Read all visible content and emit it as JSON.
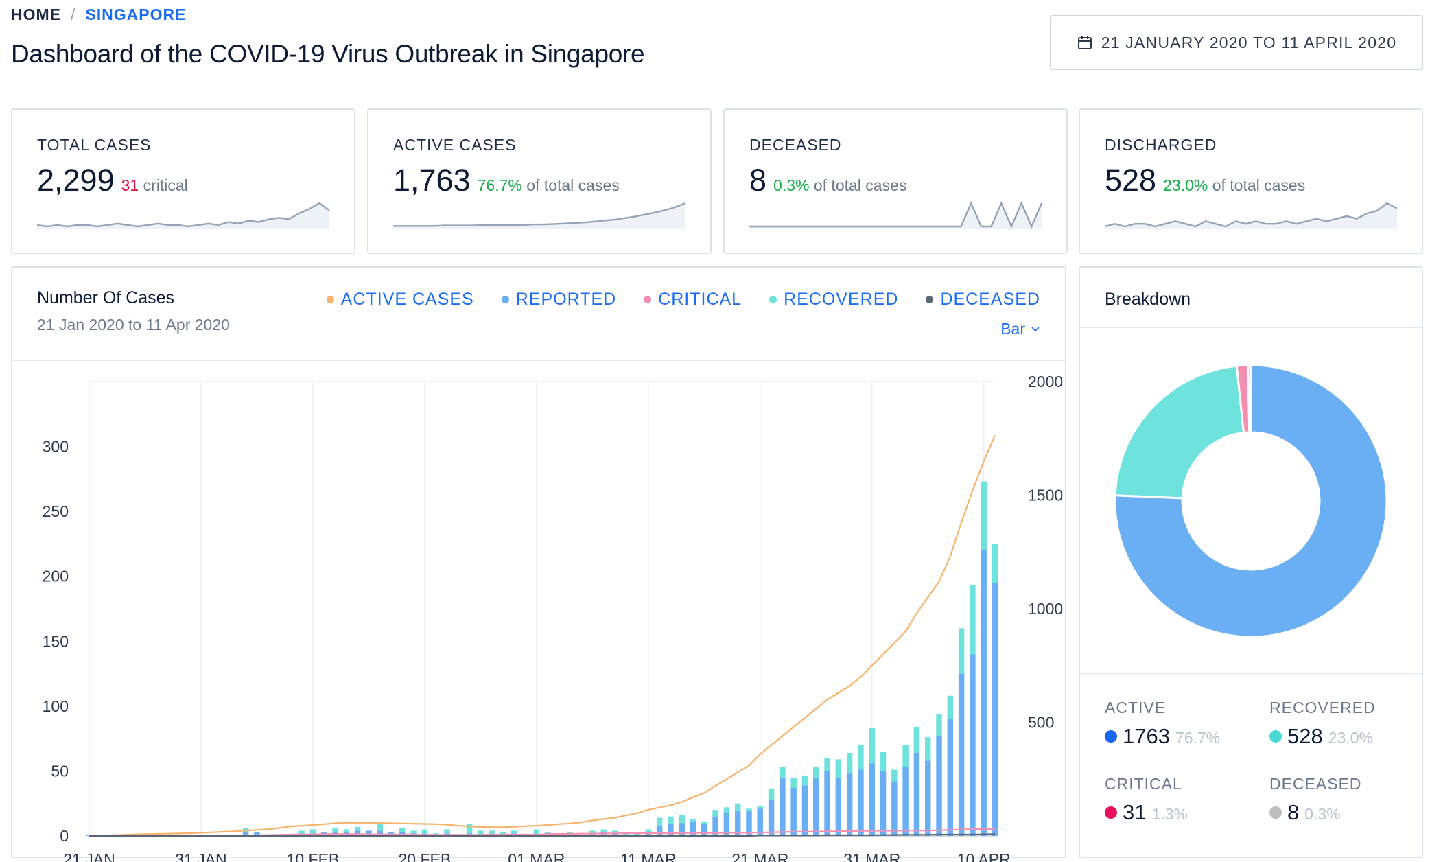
{
  "breadcrumb": {
    "home": "HOME",
    "separator": "/",
    "current": "SINGAPORE"
  },
  "page_title": "Dashboard of the COVID-19 Virus Outbreak in Singapore",
  "date_range": {
    "label": "21 JANUARY 2020 TO 11 APRIL 2020",
    "icon": "calendar-icon"
  },
  "stats": [
    {
      "label": "TOTAL CASES",
      "value": "2,299",
      "sub_value": "31",
      "sub_text": "critical",
      "sub_color": "red"
    },
    {
      "label": "ACTIVE CASES",
      "value": "1,763",
      "sub_value": "76.7%",
      "sub_text": "of total cases",
      "sub_color": "green"
    },
    {
      "label": "DECEASED",
      "value": "8",
      "sub_value": "0.3%",
      "sub_text": "of total cases",
      "sub_color": "green"
    },
    {
      "label": "DISCHARGED",
      "value": "528",
      "sub_value": "23.0%",
      "sub_text": "of total cases",
      "sub_color": "green"
    }
  ],
  "sparklines": [
    [
      1,
      0,
      1,
      0,
      1,
      1,
      0,
      1,
      2,
      1,
      0,
      1,
      2,
      1,
      1,
      0,
      1,
      2,
      1,
      3,
      2,
      4,
      3,
      5,
      6,
      5,
      9,
      12,
      16,
      11
    ],
    [
      1,
      1,
      1,
      1,
      1,
      2,
      2,
      2,
      2,
      3,
      3,
      3,
      3,
      3,
      4,
      4,
      5,
      6,
      7,
      8,
      10,
      12,
      14,
      17,
      20,
      24,
      28,
      33,
      39,
      47
    ],
    [
      0,
      0,
      0,
      0,
      0,
      0,
      0,
      0,
      0,
      0,
      0,
      0,
      0,
      0,
      0,
      0,
      0,
      0,
      0,
      0,
      0,
      0,
      1,
      0,
      0,
      1,
      0,
      1,
      0,
      1
    ],
    [
      0,
      1,
      0,
      1,
      1,
      0,
      1,
      2,
      1,
      0,
      2,
      1,
      0,
      2,
      1,
      2,
      1,
      1,
      2,
      1,
      2,
      3,
      2,
      3,
      4,
      3,
      5,
      6,
      9,
      7
    ]
  ],
  "chart": {
    "title": "Number Of Cases",
    "subtitle": "21 Jan 2020 to 11 Apr 2020",
    "type_selector": "Bar",
    "legend": [
      {
        "label": "ACTIVE CASES",
        "color": "#f5b36b"
      },
      {
        "label": "REPORTED",
        "color": "#6aaef4"
      },
      {
        "label": "CRITICAL",
        "color": "#f48fb1"
      },
      {
        "label": "RECOVERED",
        "color": "#6ee2dd"
      },
      {
        "label": "DECEASED",
        "color": "#5b6677"
      }
    ]
  },
  "breakdown": {
    "title": "Breakdown",
    "items": [
      {
        "label": "ACTIVE",
        "value": "1763",
        "pct": "76.7%",
        "color": "#1765f2"
      },
      {
        "label": "RECOVERED",
        "value": "528",
        "pct": "23.0%",
        "color": "#4bd9d4"
      },
      {
        "label": "CRITICAL",
        "value": "31",
        "pct": "1.3%",
        "color": "#e8125d"
      },
      {
        "label": "DECEASED",
        "value": "8",
        "pct": "0.3%",
        "color": "#bdbdbd"
      }
    ]
  },
  "chart_data": [
    {
      "type": "bar",
      "title": "Number Of Cases",
      "subtitle": "21 Jan 2020 to 11 Apr 2020",
      "x_tick_labels": [
        "21 JAN",
        "31 JAN",
        "10 FEB",
        "20 FEB",
        "01 MAR",
        "11 MAR",
        "21 MAR",
        "31 MAR",
        "10 APR"
      ],
      "y_left_ticks": [
        0,
        50,
        100,
        150,
        200,
        250,
        300
      ],
      "y_left_lim": [
        0,
        350
      ],
      "y_right_ticks": [
        500,
        1000,
        1500,
        2000
      ],
      "y_right_lim": [
        0,
        2000
      ],
      "stacked": true,
      "days": 82,
      "series": [
        {
          "name": "REPORTED",
          "axis": "left",
          "kind": "bar",
          "color": "#6aaef4",
          "values": [
            1,
            0,
            0,
            1,
            0,
            0,
            0,
            0,
            0,
            1,
            0,
            0,
            0,
            0,
            3,
            3,
            0,
            0,
            0,
            1,
            2,
            3,
            3,
            3,
            4,
            4,
            4,
            3,
            3,
            2,
            2,
            1,
            2,
            0,
            2,
            1,
            0,
            0,
            2,
            0,
            1,
            0,
            1,
            1,
            0,
            2,
            3,
            2,
            1,
            0,
            3,
            8,
            9,
            10,
            11,
            9,
            15,
            18,
            19,
            19,
            21,
            28,
            45,
            37,
            39,
            45,
            50,
            45,
            48,
            51,
            56,
            50,
            42,
            53,
            64,
            58,
            77,
            90,
            125,
            140,
            220,
            195
          ]
        },
        {
          "name": "RECOVERED",
          "axis": "left",
          "kind": "bar",
          "color": "#6ee2dd",
          "values": [
            0,
            0,
            0,
            0,
            0,
            0,
            0,
            0,
            0,
            0,
            0,
            0,
            0,
            0,
            3,
            0,
            0,
            0,
            0,
            3,
            3,
            0,
            3,
            2,
            3,
            0,
            5,
            0,
            3,
            2,
            3,
            1,
            3,
            0,
            7,
            3,
            4,
            3,
            2,
            0,
            4,
            3,
            0,
            2,
            0,
            2,
            2,
            2,
            2,
            2,
            2,
            6,
            6,
            6,
            2,
            2,
            5,
            4,
            6,
            2,
            2,
            8,
            8,
            8,
            7,
            8,
            10,
            14,
            16,
            19,
            27,
            15,
            9,
            17,
            20,
            18,
            17,
            18,
            35,
            53,
            53,
            30
          ]
        },
        {
          "name": "CRITICAL",
          "axis": "right",
          "kind": "line",
          "color": "#f48fb1",
          "values": [
            0,
            0,
            0,
            0,
            0,
            0,
            0,
            0,
            0,
            1,
            1,
            1,
            2,
            2,
            3,
            3,
            4,
            5,
            6,
            7,
            7,
            8,
            8,
            8,
            8,
            7,
            7,
            7,
            6,
            6,
            5,
            5,
            5,
            5,
            5,
            5,
            6,
            6,
            6,
            6,
            6,
            8,
            9,
            9,
            10,
            10,
            11,
            11,
            12,
            12,
            12,
            12,
            12,
            13,
            13,
            13,
            13,
            14,
            14,
            14,
            15,
            16,
            17,
            18,
            18,
            19,
            20,
            20,
            21,
            22,
            22,
            23,
            23,
            24,
            24,
            24,
            25,
            27,
            28,
            30,
            30,
            31
          ]
        },
        {
          "name": "ACTIVE CASES",
          "axis": "right",
          "kind": "line",
          "color": "#f5b36b",
          "values": [
            1,
            2,
            3,
            5,
            7,
            8,
            9,
            10,
            11,
            12,
            14,
            16,
            18,
            20,
            24,
            26,
            30,
            35,
            42,
            45,
            48,
            52,
            56,
            58,
            58,
            58,
            57,
            56,
            55,
            54,
            53,
            52,
            50,
            45,
            42,
            40,
            38,
            38,
            40,
            43,
            45,
            48,
            52,
            55,
            60,
            68,
            74,
            80,
            90,
            100,
            115,
            125,
            135,
            150,
            170,
            190,
            220,
            250,
            280,
            310,
            360,
            400,
            440,
            480,
            520,
            560,
            600,
            630,
            660,
            700,
            750,
            800,
            850,
            900,
            980,
            1050,
            1120,
            1230,
            1380,
            1520,
            1650,
            1763
          ]
        },
        {
          "name": "DECEASED",
          "axis": "right",
          "kind": "line",
          "color": "#5b6677",
          "values": [
            0,
            0,
            0,
            0,
            0,
            0,
            0,
            0,
            0,
            0,
            0,
            0,
            0,
            0,
            0,
            0,
            0,
            0,
            0,
            0,
            0,
            0,
            0,
            0,
            0,
            0,
            0,
            0,
            0,
            0,
            0,
            0,
            0,
            0,
            0,
            0,
            0,
            0,
            0,
            0,
            0,
            0,
            0,
            0,
            0,
            0,
            0,
            0,
            0,
            0,
            0,
            0,
            0,
            0,
            0,
            0,
            0,
            0,
            0,
            0,
            2,
            2,
            2,
            2,
            2,
            2,
            3,
            3,
            3,
            3,
            3,
            4,
            4,
            5,
            5,
            5,
            6,
            6,
            6,
            6,
            7,
            8
          ]
        }
      ]
    },
    {
      "type": "pie",
      "title": "Breakdown",
      "labels": [
        "ACTIVE",
        "RECOVERED",
        "CRITICAL",
        "DECEASED"
      ],
      "values": [
        1763,
        528,
        31,
        8
      ],
      "colors": [
        "#6aaef4",
        "#6ee2dd",
        "#f48fb1",
        "#bdbdbd"
      ],
      "donut": true
    }
  ]
}
